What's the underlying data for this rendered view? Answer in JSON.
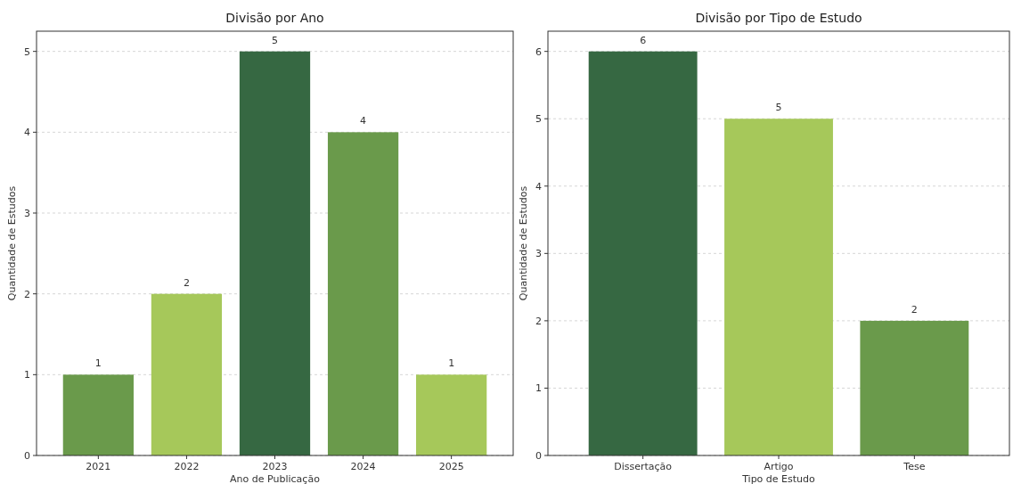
{
  "chart_data": [
    {
      "type": "bar",
      "title": "Divisão por Ano",
      "xlabel": "Ano de Publicação",
      "ylabel": "Quantidade de Estudos",
      "categories": [
        "2021",
        "2022",
        "2023",
        "2024",
        "2025"
      ],
      "values": [
        1,
        2,
        5,
        4,
        1
      ],
      "colors": [
        "#6a9a4b",
        "#a6c85a",
        "#366842",
        "#6a9a4b",
        "#a6c85a"
      ],
      "ylim": [
        0,
        5.25
      ],
      "yticks": [
        0,
        1,
        2,
        3,
        4,
        5
      ],
      "grid": "y",
      "data_labels": true
    },
    {
      "type": "bar",
      "title": "Divisão por Tipo de Estudo",
      "xlabel": "Tipo de Estudo",
      "ylabel": "Quantidade de Estudos",
      "categories": [
        "Dissertação",
        "Artigo",
        "Tese"
      ],
      "values": [
        6,
        5,
        2
      ],
      "colors": [
        "#366842",
        "#a6c85a",
        "#6a9a4b"
      ],
      "ylim": [
        0,
        6.3
      ],
      "yticks": [
        0,
        1,
        2,
        3,
        4,
        5,
        6
      ],
      "grid": "y",
      "data_labels": true
    }
  ]
}
